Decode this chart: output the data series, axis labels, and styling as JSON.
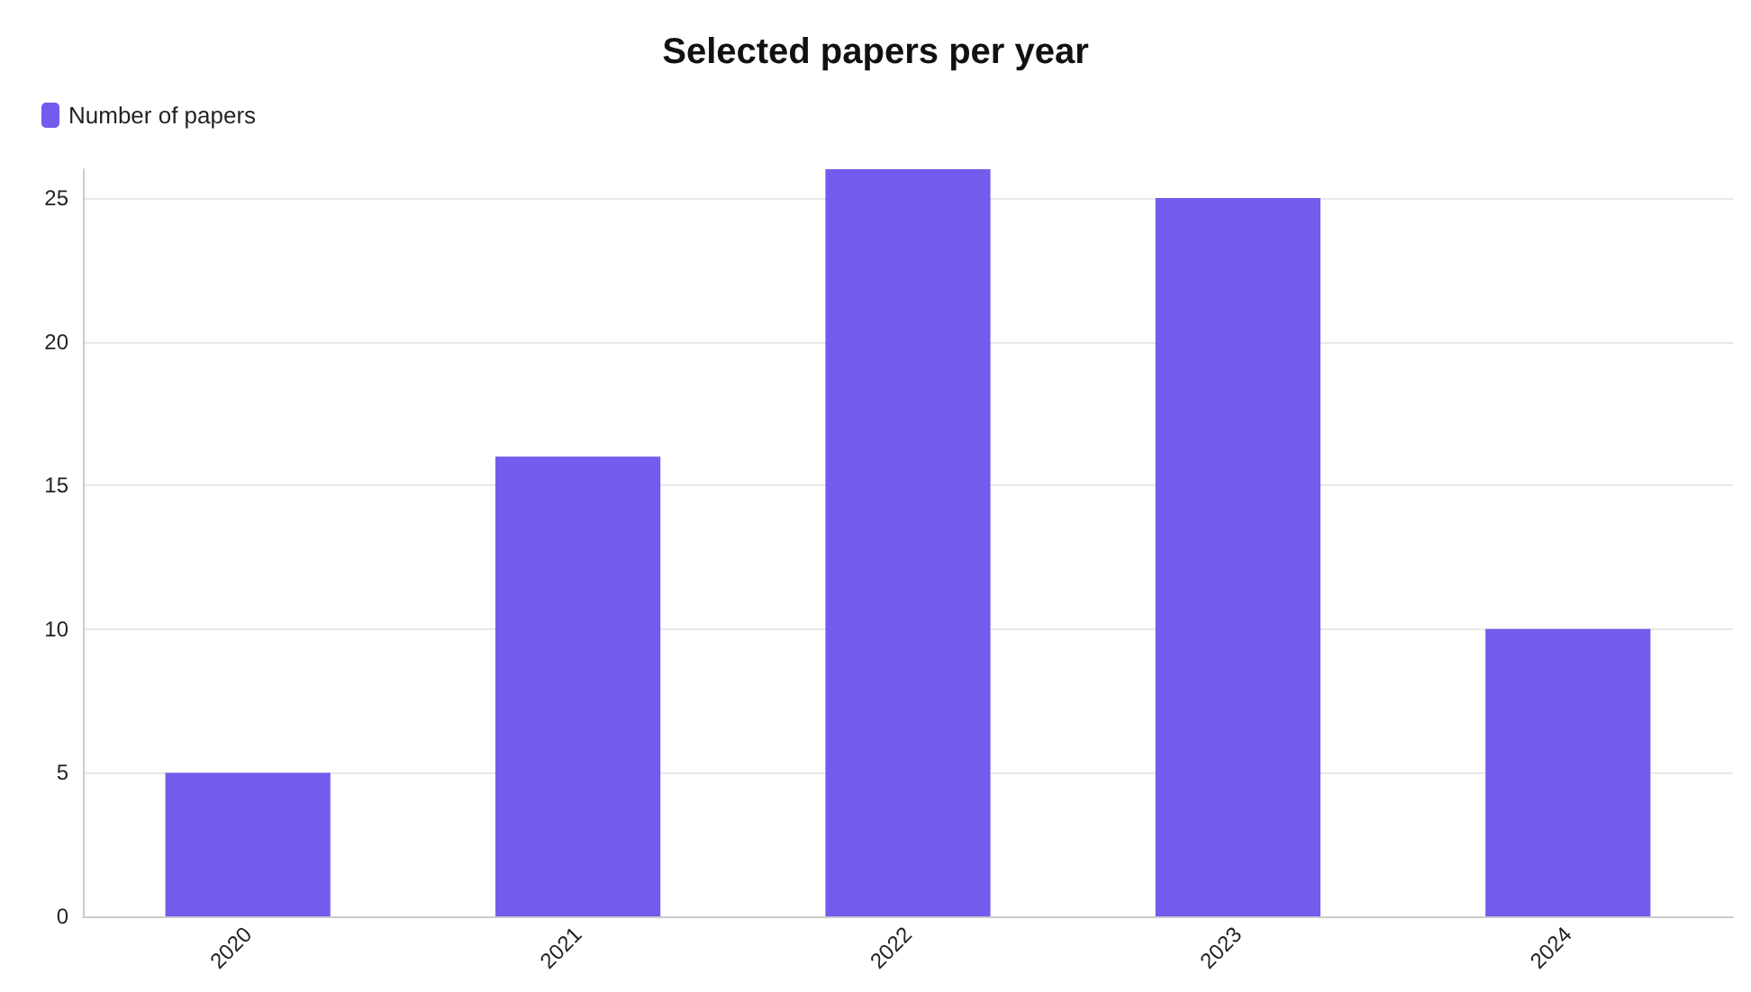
{
  "chart_data": {
    "type": "bar",
    "title": "Selected papers per year",
    "categories": [
      "2020",
      "2021",
      "2022",
      "2023",
      "2024"
    ],
    "series": [
      {
        "name": "Number of papers",
        "color": "#6a52ec",
        "values": [
          5,
          16,
          26,
          25,
          10
        ]
      }
    ],
    "ylim": [
      0,
      26
    ],
    "yticks": [
      0,
      5,
      10,
      15,
      20,
      25
    ],
    "grid": "y",
    "legend": "top left"
  }
}
